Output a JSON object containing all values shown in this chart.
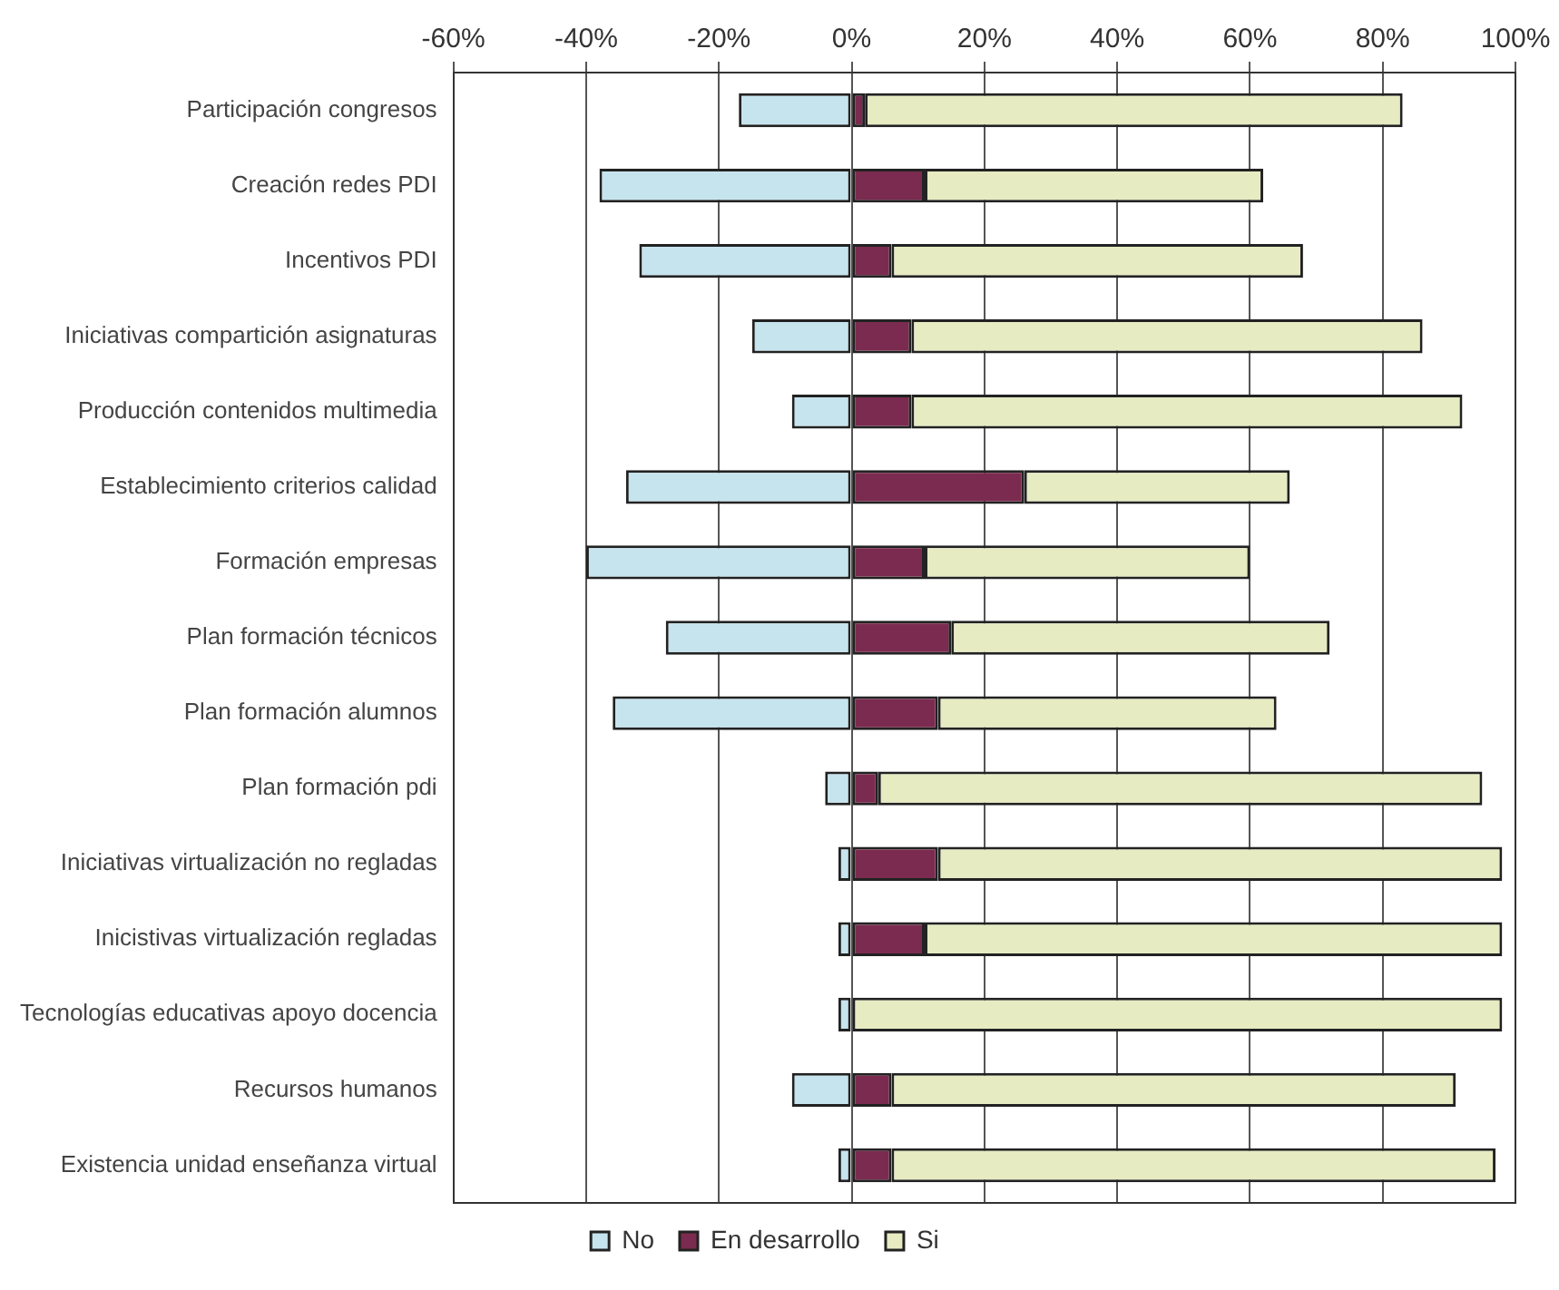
{
  "chart_data": {
    "type": "bar",
    "orientation": "horizontal",
    "stacked": true,
    "categories": [
      "Participación congresos",
      "Creación redes PDI",
      "Incentivos PDI",
      "Iniciativas compartición asignaturas",
      "Producción contenidos multimedia",
      "Establecimiento criterios calidad",
      "Formación empresas",
      "Plan formación técnicos",
      "Plan formación alumnos",
      "Plan formación pdi",
      "Iniciativas virtualización no regladas",
      "Inicistivas virtualización regladas",
      "Tecnologías educativas apoyo docencia",
      "Recursos humanos",
      "Existencia unidad enseñanza virtual"
    ],
    "series": [
      {
        "name": "No",
        "color": "#c6e4ee",
        "values": [
          -17,
          -38,
          -32,
          -15,
          -9,
          -34,
          -40,
          -28,
          -36,
          -4,
          -2,
          -2,
          -2,
          -9,
          -2
        ]
      },
      {
        "name": "En desarrollo",
        "color": "#7b2b4f",
        "values": [
          2,
          11,
          6,
          9,
          9,
          26,
          11,
          15,
          13,
          4,
          13,
          11,
          0,
          6,
          6
        ]
      },
      {
        "name": "Si",
        "color": "#e6ebc2",
        "values": [
          81,
          51,
          62,
          77,
          83,
          40,
          49,
          57,
          51,
          91,
          85,
          87,
          98,
          85,
          91
        ]
      }
    ],
    "xlim": [
      -60,
      100
    ],
    "xticks": [
      {
        "value": -60,
        "label": "-60%"
      },
      {
        "value": -40,
        "label": "-40%"
      },
      {
        "value": -20,
        "label": "-20%"
      },
      {
        "value": 0,
        "label": "0%"
      },
      {
        "value": 20,
        "label": "20%"
      },
      {
        "value": 40,
        "label": "40%"
      },
      {
        "value": 60,
        "label": "60%"
      },
      {
        "value": 80,
        "label": "80%"
      },
      {
        "value": 100,
        "label": "100%"
      }
    ],
    "grid": "x",
    "legend": "bottom"
  }
}
